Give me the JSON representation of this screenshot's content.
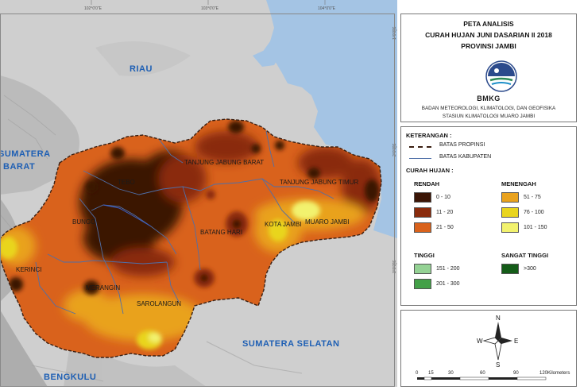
{
  "map": {
    "regions": {
      "riau": "RIAU",
      "sumbar_1": "SUMATERA",
      "sumbar_2": "BARAT",
      "sumsel": "SUMATERA SELATAN",
      "bengkulu": "BENGKULU"
    },
    "kabupaten": {
      "tanjabbar": "TANJUNG JABUNG BARAT",
      "tanjabtim": "TANJUNG JABUNG TIMUR",
      "tebo": "TEBO",
      "bungo": "BUNGO",
      "batanghari": "BATANG HARI",
      "kota_jambi": "KOTA JAMBI",
      "muaro_jambi": "MUARO JAMBI",
      "kerinci": "KERINCI",
      "merangin": "MERANGIN",
      "sarolangun": "SAROLANGUN"
    },
    "coords_top": [
      "102°0'0\"E",
      "103°0'0\"E",
      "104°0'0\"E"
    ],
    "coords_right": [
      "1°0'0\"S",
      "2°0'0\"S",
      "3°0'0\"S"
    ]
  },
  "title": {
    "line1": "PETA ANALISIS",
    "line2": "CURAH HUJAN JUNI DASARIAN II 2018",
    "line3": "PROVINSI JAMBI"
  },
  "logo": {
    "icon": "bmkg-logo",
    "text": "BMKG"
  },
  "agency": {
    "line1": "BADAN METEOROLOGI, KLIMATOLOGI, DAN GEOFISIKA",
    "line2": "STASIUN KLIMATOLOGI MUARO JAMBI"
  },
  "legend": {
    "heading": "KETERANGAN :",
    "batas_propinsi": "BATAS PROPINSI",
    "batas_kabupaten": "BATAS KABUPATEN",
    "curah_hujan": "CURAH HUJAN :",
    "colors": {
      "propinsi": "#3a1f12",
      "kabupaten": "#4f6fa8"
    },
    "groups": {
      "rendah": "RENDAH",
      "menengah": "MENENGAH",
      "tinggi": "TINGGI",
      "sangat_tinggi": "SANGAT TINGGI"
    },
    "classes": [
      {
        "label": "0 - 10",
        "color": "#3b1506"
      },
      {
        "label": "11 - 20",
        "color": "#8a2b0c"
      },
      {
        "label": "21 - 50",
        "color": "#d9621c"
      },
      {
        "label": "51 - 75",
        "color": "#e9a21e"
      },
      {
        "label": "76 - 100",
        "color": "#e9d51e"
      },
      {
        "label": "101 - 150",
        "color": "#f2f26e"
      },
      {
        "label": "151 - 200",
        "color": "#94d294"
      },
      {
        "label": "201 - 300",
        "color": "#43a047"
      },
      {
        "label": ">300",
        "color": "#145c18"
      }
    ]
  },
  "north_arrow": {
    "n": "N",
    "s": "S",
    "e": "E",
    "w": "W"
  },
  "scale_bar": {
    "ticks": [
      "0",
      "15",
      "30",
      "60",
      "90",
      "120"
    ],
    "unit": "Kilometers"
  }
}
